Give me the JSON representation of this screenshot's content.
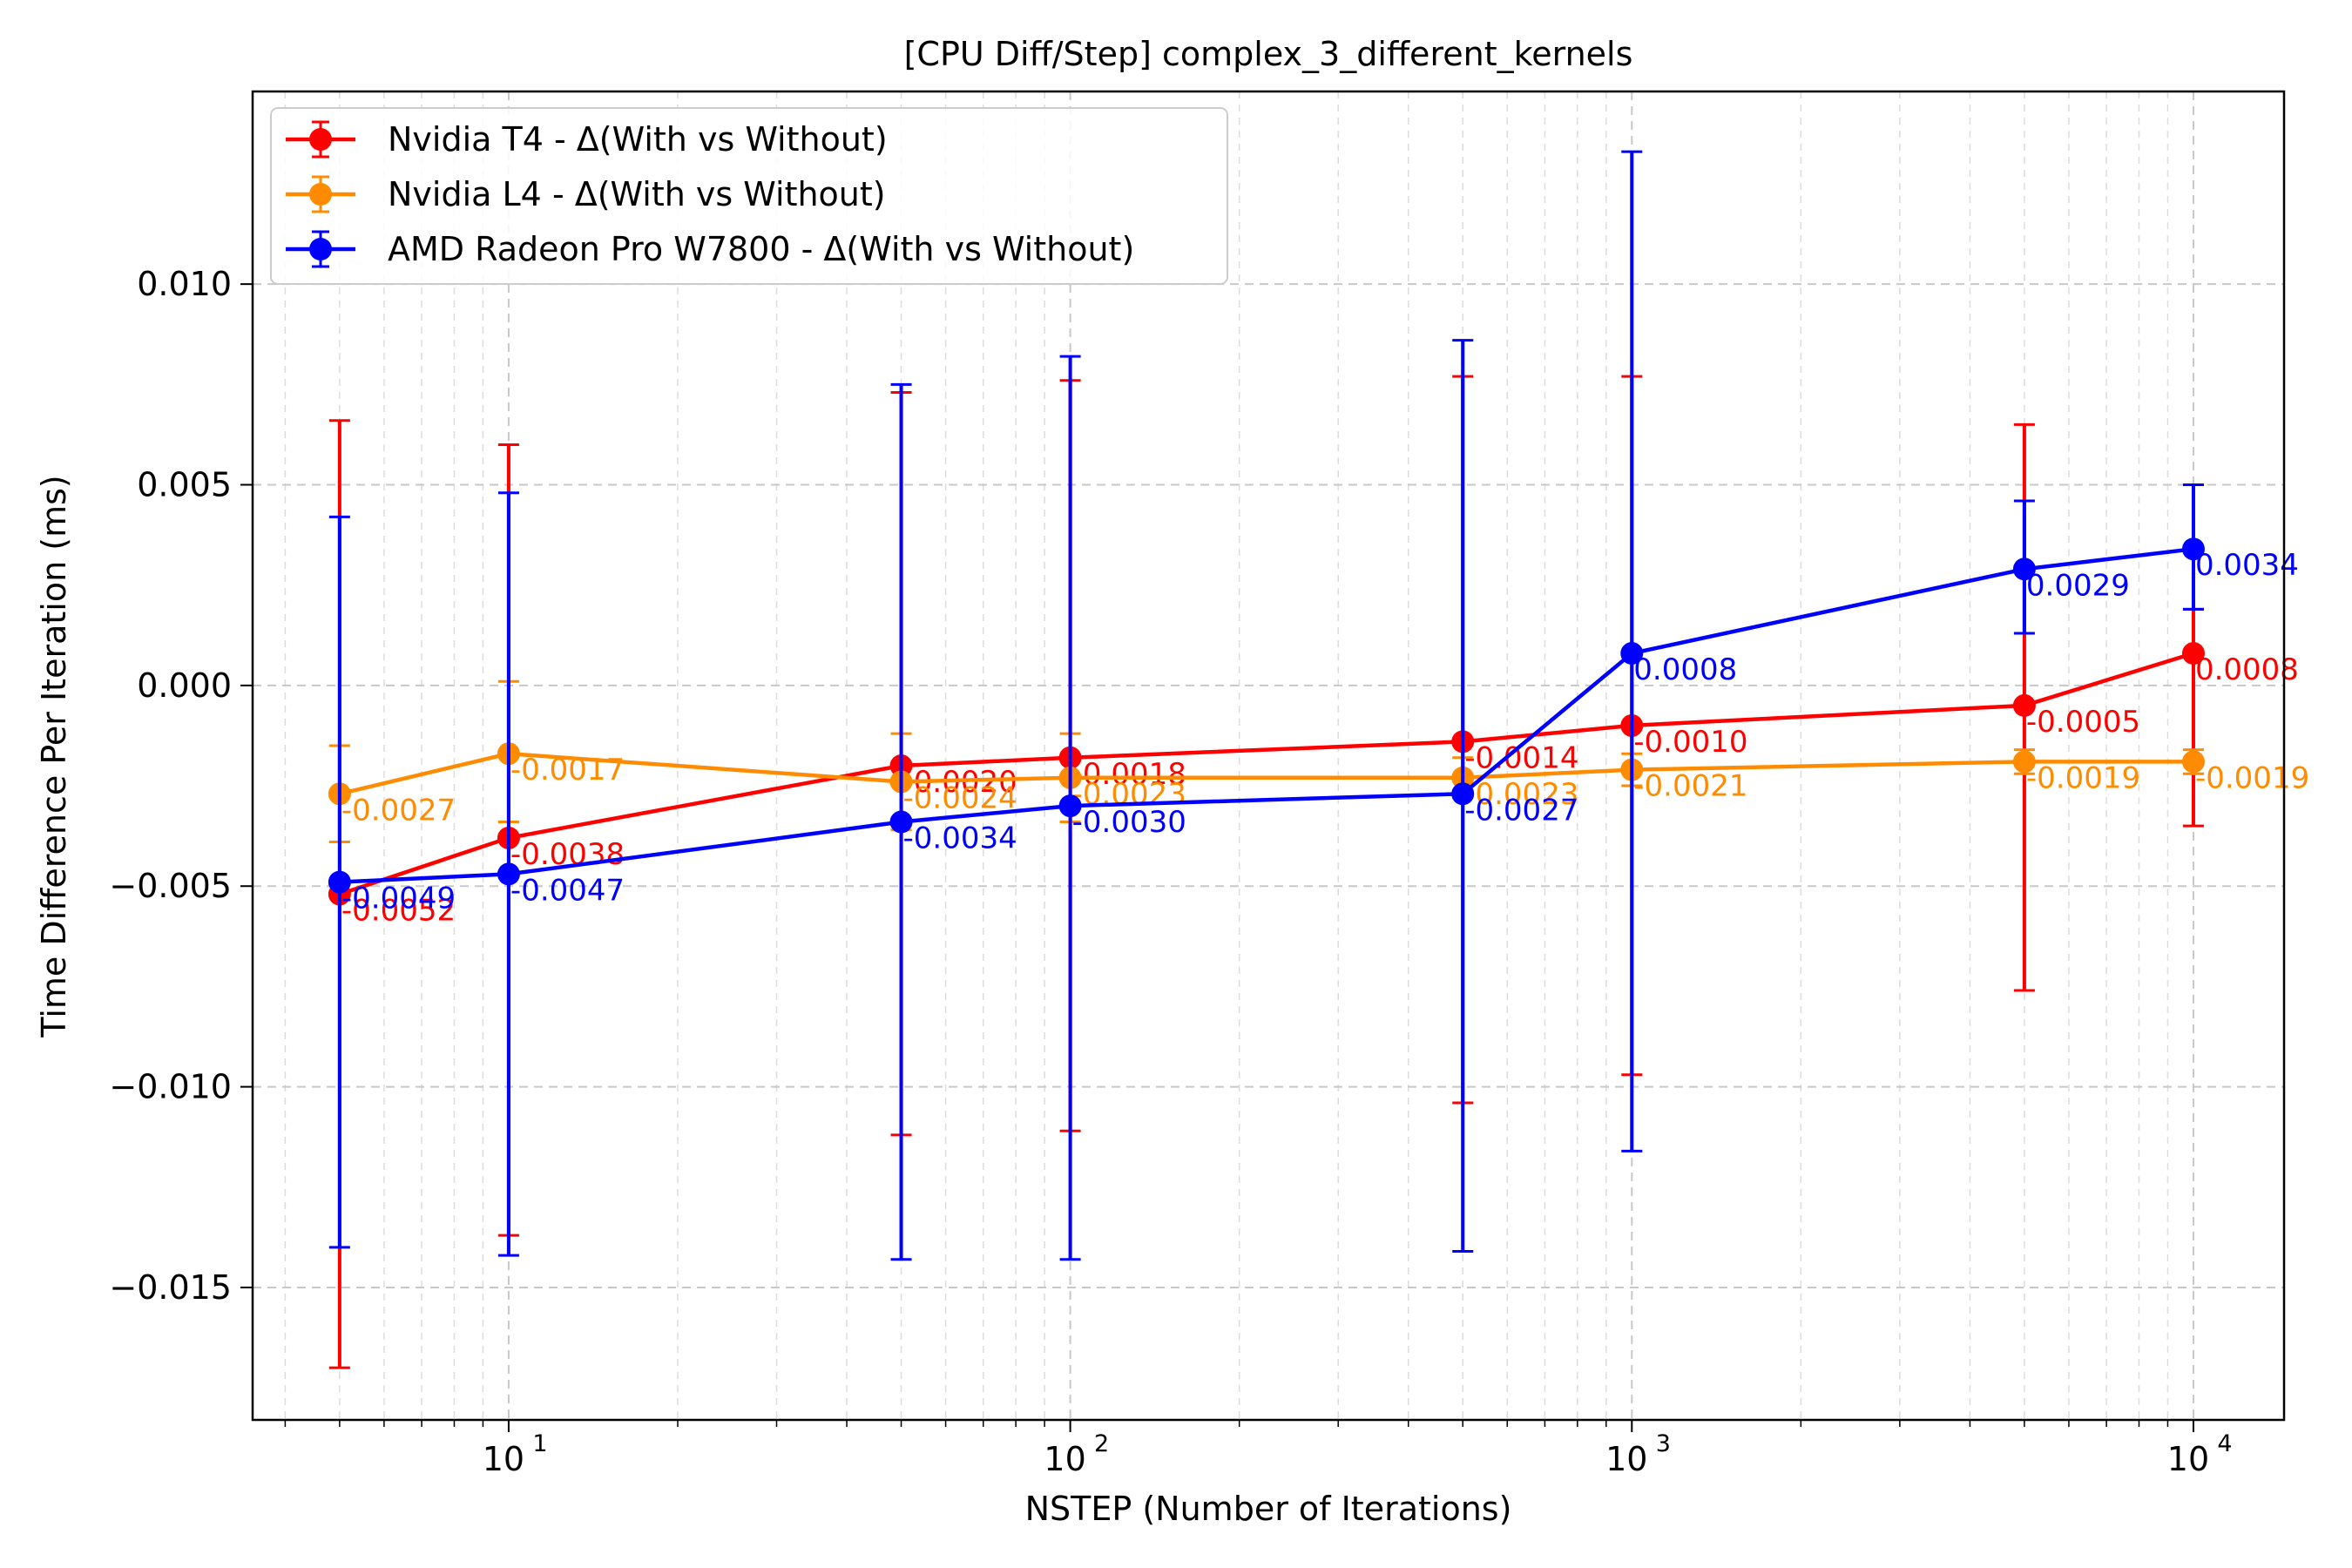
{
  "chart_data": {
    "type": "line",
    "title": "[CPU Diff/Step] complex_3_different_kernels",
    "xlabel": "NSTEP (Number of Iterations)",
    "ylabel": "Time Difference Per Iteration (ms)",
    "xscale": "log",
    "xlim": [
      3.5,
      14500
    ],
    "ylim": [
      -0.0183,
      0.0148
    ],
    "x_tick_values": [
      10,
      100,
      1000,
      10000
    ],
    "x_tick_labels": [
      {
        "base": "10",
        "exp": "1"
      },
      {
        "base": "10",
        "exp": "2"
      },
      {
        "base": "10",
        "exp": "3"
      },
      {
        "base": "10",
        "exp": "4"
      }
    ],
    "y_tick_values": [
      0.01,
      0.005,
      0.0,
      -0.005,
      -0.01,
      -0.015
    ],
    "y_tick_labels": [
      "0.010",
      "0.005",
      "0.000",
      "−0.005",
      "−0.010",
      "−0.015"
    ],
    "grid": true,
    "legend_position": "upper-left",
    "x": [
      5,
      10,
      50,
      100,
      500,
      1000,
      5000,
      10000
    ],
    "series": [
      {
        "name": "Nvidia T4 - Δ(With vs Without)",
        "color": "#ff0000",
        "values": [
          -0.0052,
          -0.0038,
          -0.002,
          -0.0018,
          -0.0014,
          -0.001,
          -0.0005,
          0.0008
        ],
        "err_low": [
          -0.017,
          -0.0137,
          -0.0112,
          -0.0111,
          -0.0104,
          -0.0097,
          -0.0076,
          -0.0035
        ],
        "err_high": [
          0.0066,
          0.006,
          0.0073,
          0.0076,
          0.0077,
          0.0077,
          0.0065,
          0.0019
        ],
        "point_labels": [
          "-0.0052",
          "-0.0038",
          "-0.0020",
          "-0.0018",
          "-0.0014",
          "-0.0010",
          "-0.0005",
          "0.0008"
        ]
      },
      {
        "name": "Nvidia L4 - Δ(With vs Without)",
        "color": "#ff8c00",
        "values": [
          -0.0027,
          -0.0017,
          -0.0024,
          -0.0023,
          -0.0023,
          -0.0021,
          -0.0019,
          -0.0019
        ],
        "err_low": [
          -0.0039,
          -0.0034,
          -0.0036,
          -0.0034,
          -0.0028,
          -0.0025,
          -0.0022,
          -0.0022
        ],
        "err_high": [
          -0.0015,
          0.0001,
          -0.0012,
          -0.0012,
          -0.0018,
          -0.0017,
          -0.0016,
          -0.0016
        ],
        "point_labels": [
          "-0.0027",
          "-0.0017",
          "-0.0024",
          "-0.0023",
          "-0.0023",
          "-0.0021",
          "-0.0019",
          "-0.0019"
        ]
      },
      {
        "name": "AMD Radeon Pro W7800 - Δ(With vs Without)",
        "color": "#0000ff",
        "values": [
          -0.0049,
          -0.0047,
          -0.0034,
          -0.003,
          -0.0027,
          0.0008,
          0.0029,
          0.0034
        ],
        "err_low": [
          -0.014,
          -0.0142,
          -0.0143,
          -0.0143,
          -0.0141,
          -0.0116,
          0.0013,
          0.0019
        ],
        "err_high": [
          0.0042,
          0.0048,
          0.0075,
          0.0082,
          0.0086,
          0.0133,
          0.0046,
          0.005
        ],
        "point_labels": [
          "-0.0049",
          "-0.0047",
          "-0.0034",
          "-0.0030",
          "-0.0027",
          "0.0008",
          "0.0029",
          "0.0034"
        ]
      }
    ]
  }
}
